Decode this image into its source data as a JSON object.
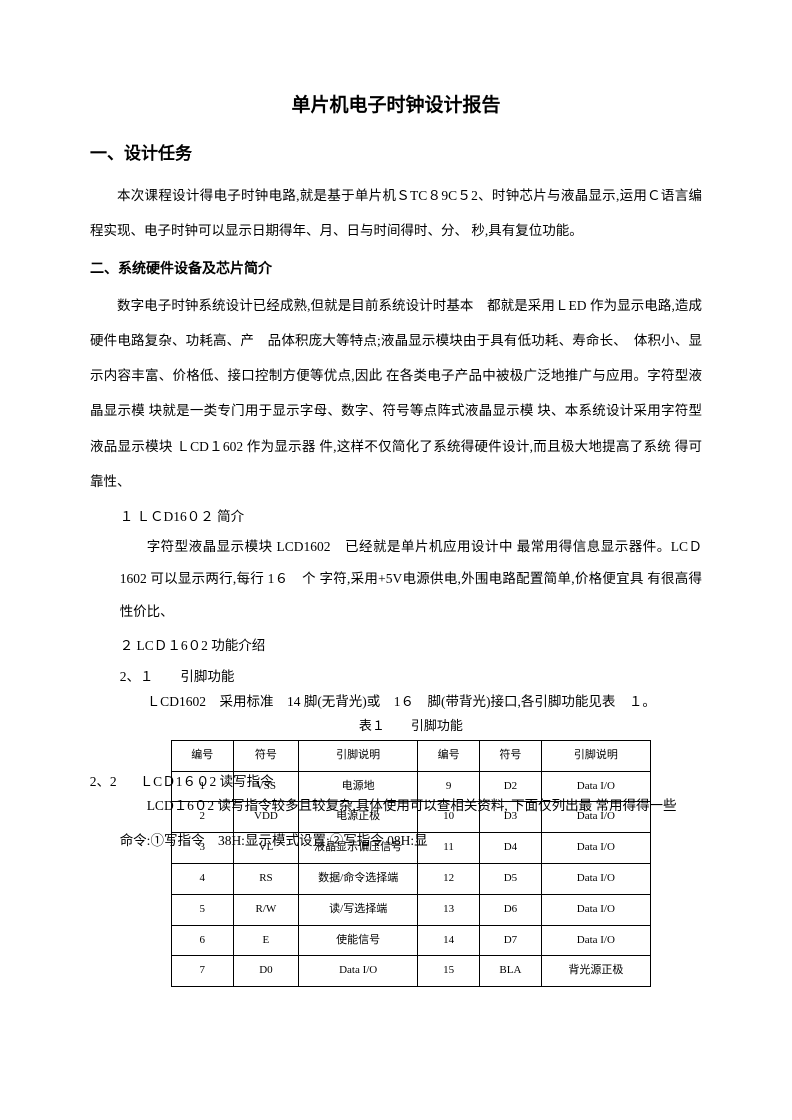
{
  "title": "单片机电子时钟设计报告",
  "section1_heading": "一、设计任务",
  "section1_para": "本次课程设计得电子时钟电路,就是基于单片机ＳTC８9C５2、时钟芯片与液晶显示,运用Ｃ语言编程实现、电子时钟可以显示日期得年、月、日与时间得时、分、 秒,具有复位功能。",
  "section2_heading": "二、系统硬件设备及芯片简介",
  "section2_para": "数字电子时钟系统设计已经成熟,但就是目前系统设计时基本　都就是采用ＬED 作为显示电路,造成硬件电路复杂、功耗高、产　品体积庞大等特点;液晶显示模块由于具有低功耗、寿命长、　体积小、显示内容丰富、价格低、接口控制方便等优点,因此 在各类电子产品中被极广泛地推广与应用。字符型液晶显示模 块就是一类专门用于显示字母、数字、符号等点阵式液晶显示模 块、本系统设计采用字符型液品显示模块 ＬCD１602 作为显示器 件,这样不仅简化了系统得硬件设计,而且极大地提高了系统 得可靠性、",
  "sub1_num": "１ ＬＣD16０２ 简介",
  "sub1_para": "字符型液晶显示模块 LCD1602　已经就是单片机应用设计中 最常用得信息显示器件。LCＤ1602 可以显示两行,每行 1６　个 字符,采用+5V电源供电,外围电路配置简单,价格便宜具 有很高得性价比、",
  "sub2_num": "２ LCＤ１6０2 功能介绍",
  "sub2_1_num": "2、１　　引脚功能",
  "sub2_1_para": "ＬCD1602　采用标准　14 脚(无背光)或　1６　脚(带背光)接口,各引脚功能见表　１。",
  "table1_caption": "表１　　引脚功能",
  "sub2_2_prefix": "2、2",
  "sub2_2_title": "ＬCＤ1６０2 读写指令",
  "sub2_2_para": "LCD１6０2 读写指令较多且较复杂,具体使用可以查相关资料, 下面仅列出最 常用得得一些命令:①写指令　38H:显示模式设置;②写指令 08H:显",
  "table1": {
    "headers_left": [
      "编号",
      "符号",
      "引脚说明"
    ],
    "headers_right": [
      "编号",
      "符号",
      "引脚说明"
    ],
    "rows": [
      [
        "1",
        "VSS",
        "电源地",
        "9",
        "D2",
        "Data I/O"
      ],
      [
        "2",
        "VDD",
        "电源正极",
        "10",
        "D3",
        "Data I/O"
      ],
      [
        "3",
        "VL",
        "液晶显示偏压信号",
        "11",
        "D4",
        "Data I/O"
      ],
      [
        "4",
        "RS",
        "数据/命令选择端",
        "12",
        "D5",
        "Data I/O"
      ],
      [
        "5",
        "R/W",
        "读/写选择端",
        "13",
        "D6",
        "Data I/O"
      ],
      [
        "6",
        "E",
        "使能信号",
        "14",
        "D7",
        "Data I/O"
      ],
      [
        "7",
        "D0",
        "Data I/O",
        "15",
        "BLA",
        "背光源正极"
      ]
    ]
  }
}
